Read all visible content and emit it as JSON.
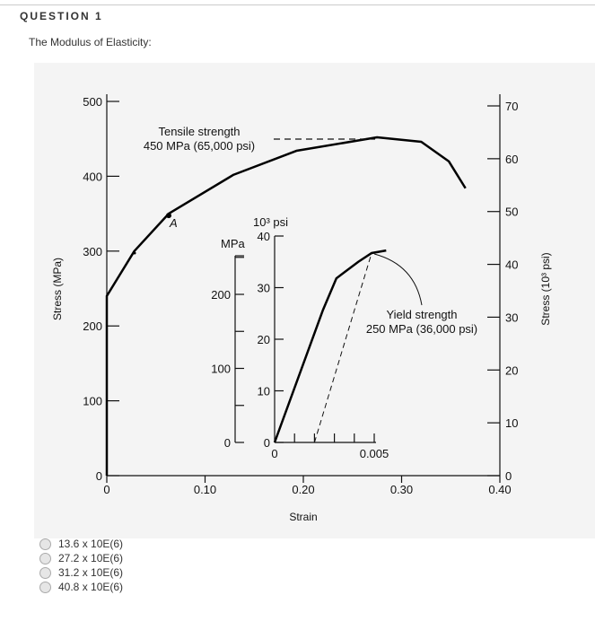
{
  "question": {
    "title": "QUESTION 1",
    "text": "The Modulus of Elasticity:"
  },
  "answers": [
    "13.6 x 10E(6)",
    "27.2 x 10E(6)",
    "31.2 x 10E(6)",
    "40.8 x 10E(6)"
  ],
  "chart_data": [
    {
      "type": "line",
      "xlabel": "Strain",
      "ylabel": "Stress (MPa)",
      "ylabel_right": "Stress (10³ psi)",
      "xlim": [
        0,
        0.4
      ],
      "ylim": [
        0,
        500
      ],
      "ylim_right": [
        0,
        70
      ],
      "xticks": [
        "0",
        "0.10",
        "0.20",
        "0.30",
        "0.40"
      ],
      "yticks": [
        "0",
        "100",
        "200",
        "300",
        "400",
        "500"
      ],
      "yticks_right": [
        "0",
        "10",
        "20",
        "30",
        "40",
        "50",
        "60",
        "70"
      ],
      "x": [
        0,
        0,
        0.028,
        0.063,
        0.129,
        0.193,
        0.275,
        0.32,
        0.348,
        0.365
      ],
      "y": [
        0,
        240,
        300,
        350,
        402,
        434,
        452,
        446,
        420,
        384
      ],
      "annotations": {
        "tensile_line1": "Tensile strength",
        "tensile_line2": "450 MPa (65,000 psi)",
        "point_label": "A"
      }
    },
    {
      "type": "line",
      "xlim": [
        0,
        0.005
      ],
      "ylim": [
        0,
        40
      ],
      "ylabel": "10³ psi",
      "ylabel_left": "MPa",
      "xticks": [
        "0",
        "0.005"
      ],
      "yticks": [
        "0",
        "10",
        "20",
        "30",
        "40"
      ],
      "yticks_left": [
        "0",
        "100",
        "200"
      ],
      "x": [
        0,
        0.00243,
        0.0031,
        0.0042,
        0.00487,
        0.0056
      ],
      "y": [
        0,
        25.7,
        31.8,
        35,
        36.7,
        37.2
      ],
      "offset_line": {
        "x": [
          0.002,
          0.00487
        ],
        "y": [
          0,
          36.7
        ]
      },
      "annotations": {
        "yield_line1": "Yield strength",
        "yield_line2": "250 MPa (36,000 psi)"
      }
    }
  ]
}
